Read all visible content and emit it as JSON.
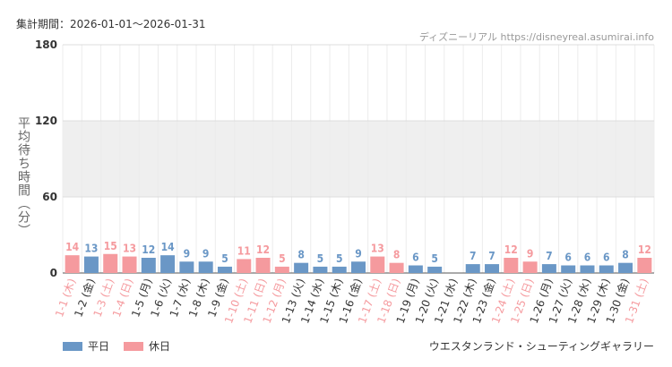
{
  "header": {
    "period_label": "集計期間：2026-01-01～2026-01-31",
    "source": "ディズニーリアル https://disneyreal.asumirai.info"
  },
  "legend": {
    "weekday": "平日",
    "holiday": "休日"
  },
  "footer": {
    "attraction": "ウエスタンランド・シューティングギャラリー"
  },
  "colors": {
    "weekday": "#6a97c6",
    "holiday": "#f59a9e",
    "band": "#efefef"
  },
  "chart_data": {
    "type": "bar",
    "ylabel": "平均待ち時間（分）",
    "ylim": [
      0,
      180
    ],
    "yticks": [
      0,
      60,
      120,
      180
    ],
    "shaded_band": [
      60,
      120
    ],
    "categories": [
      "1-1 (木)",
      "1-2 (金)",
      "1-3 (土)",
      "1-4 (日)",
      "1-5 (月)",
      "1-6 (火)",
      "1-7 (水)",
      "1-8 (木)",
      "1-9 (金)",
      "1-10 (土)",
      "1-11 (日)",
      "1-12 (月)",
      "1-13 (火)",
      "1-14 (水)",
      "1-15 (木)",
      "1-16 (金)",
      "1-17 (土)",
      "1-18 (日)",
      "1-19 (月)",
      "1-20 (火)",
      "1-21 (水)",
      "1-22 (木)",
      "1-23 (金)",
      "1-24 (土)",
      "1-25 (日)",
      "1-26 (月)",
      "1-27 (火)",
      "1-28 (水)",
      "1-29 (木)",
      "1-30 (金)",
      "1-31 (土)"
    ],
    "values": [
      14,
      13,
      15,
      13,
      12,
      14,
      9,
      9,
      5,
      11,
      12,
      5,
      8,
      5,
      5,
      9,
      13,
      8,
      6,
      5,
      null,
      7,
      7,
      12,
      9,
      7,
      6,
      6,
      6,
      8,
      12
    ],
    "holiday": [
      true,
      false,
      true,
      true,
      false,
      false,
      false,
      false,
      false,
      true,
      true,
      true,
      false,
      false,
      false,
      false,
      true,
      true,
      false,
      false,
      false,
      false,
      false,
      true,
      true,
      false,
      false,
      false,
      false,
      false,
      true
    ]
  }
}
